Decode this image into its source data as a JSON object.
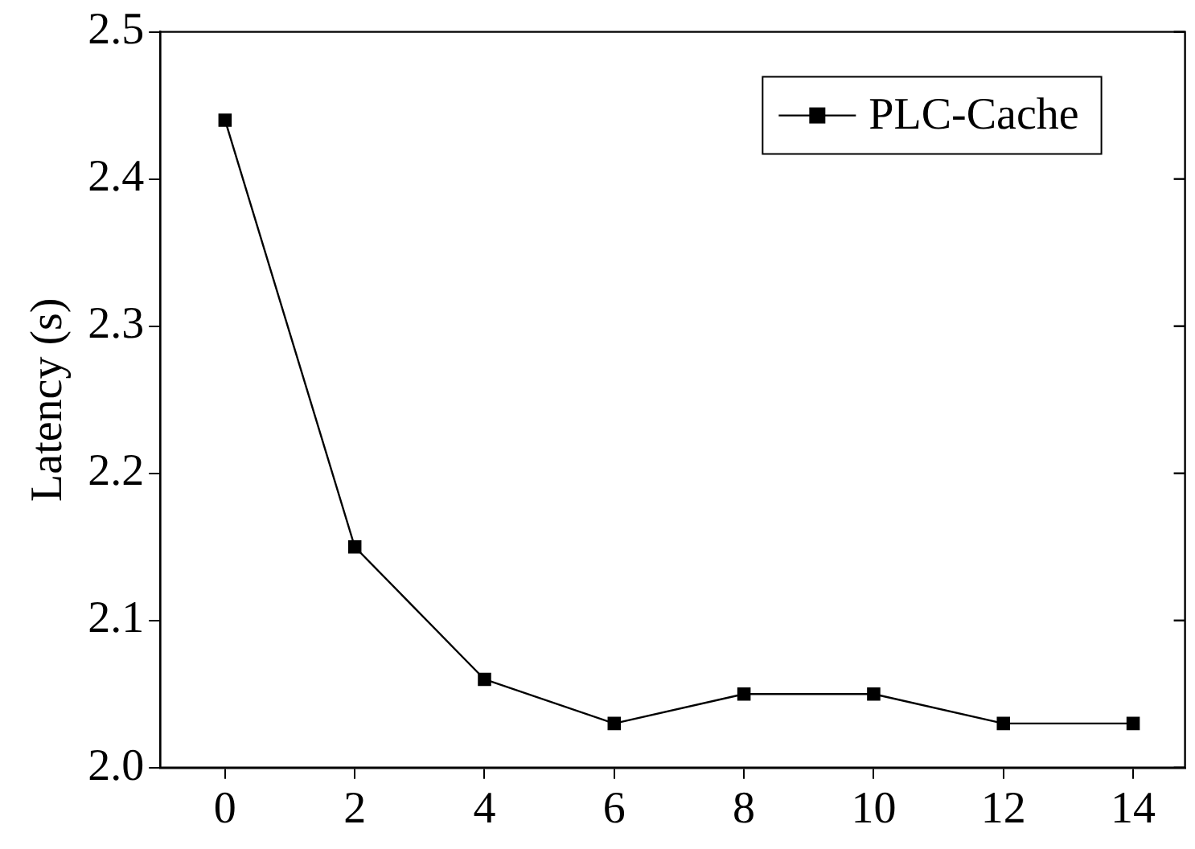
{
  "chart_data": {
    "type": "line",
    "ylabel": "Latency (s)",
    "x": [
      0,
      2,
      4,
      6,
      8,
      10,
      12,
      14
    ],
    "series": [
      {
        "name": "PLC-Cache",
        "color": "#000000",
        "values": [
          2.44,
          2.15,
          2.06,
          2.03,
          2.05,
          2.05,
          2.03,
          2.03
        ]
      }
    ],
    "xlim": [
      -1,
      14.8
    ],
    "xticks": [
      0,
      2,
      4,
      6,
      8,
      10,
      12,
      14
    ],
    "ylim": [
      2.0,
      2.5
    ],
    "yticks": [
      {
        "value": 2.0,
        "label": "2.0"
      },
      {
        "value": 2.1,
        "label": "2.1"
      },
      {
        "value": 2.2,
        "label": "2.2"
      },
      {
        "value": 2.3,
        "label": "2.3"
      },
      {
        "value": 2.4,
        "label": "2.4"
      },
      {
        "value": 2.5,
        "label": "2.5"
      }
    ],
    "grid": false,
    "legend": "top right",
    "marker": "square",
    "line_style": "solid"
  }
}
